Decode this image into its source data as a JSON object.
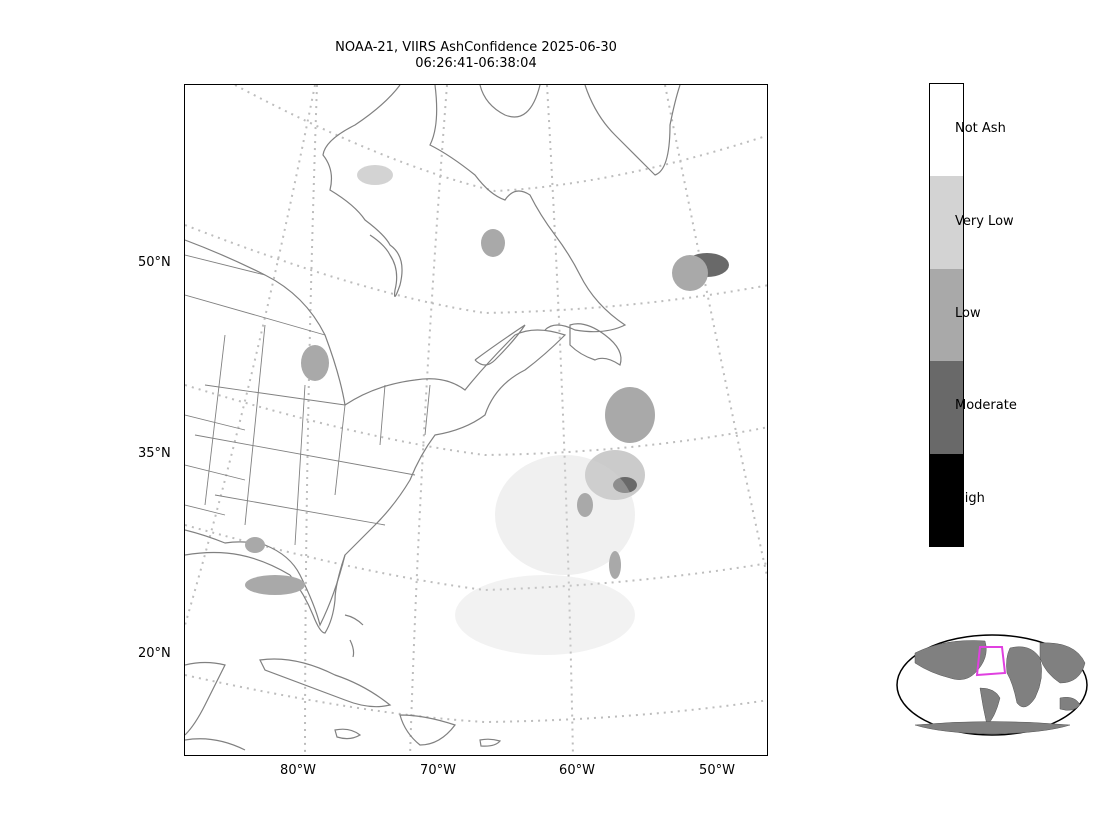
{
  "title": {
    "line1": "NOAA-21, VIIRS AshConfidence 2025-06-30",
    "line2": "06:26:41-06:38:04"
  },
  "lat_labels": [
    "50°N",
    "35°N",
    "20°N"
  ],
  "lon_labels": [
    "80°W",
    "70°W",
    "60°W",
    "50°W"
  ],
  "legend": {
    "items": [
      {
        "label": "Not Ash",
        "color": "#ffffff"
      },
      {
        "label": "Very Low",
        "color": "#d3d3d3"
      },
      {
        "label": "Low",
        "color": "#a9a9a9"
      },
      {
        "label": "Moderate",
        "color": "#696969"
      },
      {
        "label": "High",
        "color": "#000000"
      }
    ]
  },
  "colors": {
    "coastline": "#808080",
    "gridline": "#bdbdbd",
    "inset_land": "#808080",
    "inset_box": "#e040e0"
  }
}
